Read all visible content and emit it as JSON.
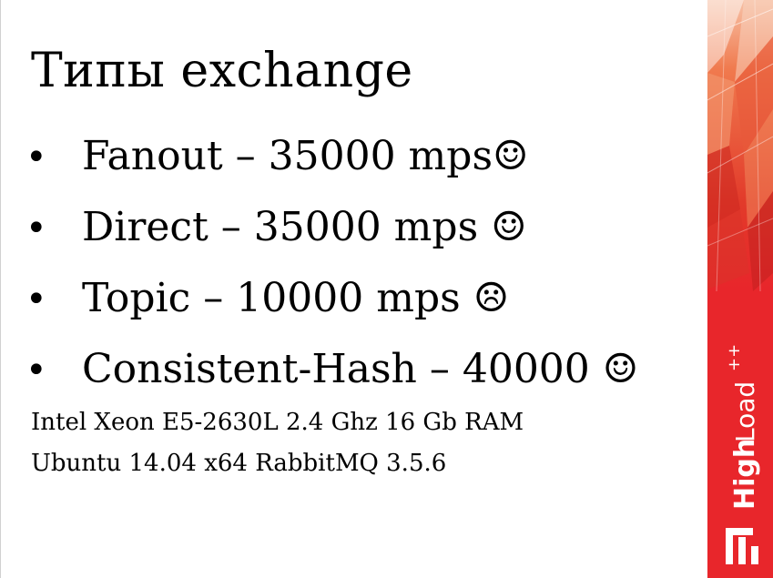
{
  "slide": {
    "title": "Типы exchange",
    "bullets": [
      {
        "marker": "•",
        "text": "Fanout – 35000 mps☺"
      },
      {
        "marker": "•",
        "text": "Direct – 35000 mps ☺"
      },
      {
        "marker": "•",
        "text": "Topic – 10000 mps ☹"
      },
      {
        "marker": "•",
        "text": "Consistent-Hash – 40000 ☺"
      }
    ],
    "specs": [
      "Intel Xeon E5-2630L 2.4 Ghz 16 Gb RAM",
      "Ubuntu 14.04 x64 RabbitMQ 3.5.6"
    ]
  },
  "branding": {
    "logo_text_bold": "High",
    "logo_text_light": "Load",
    "logo_suffix": "++",
    "accent_color": "#e8262b"
  }
}
